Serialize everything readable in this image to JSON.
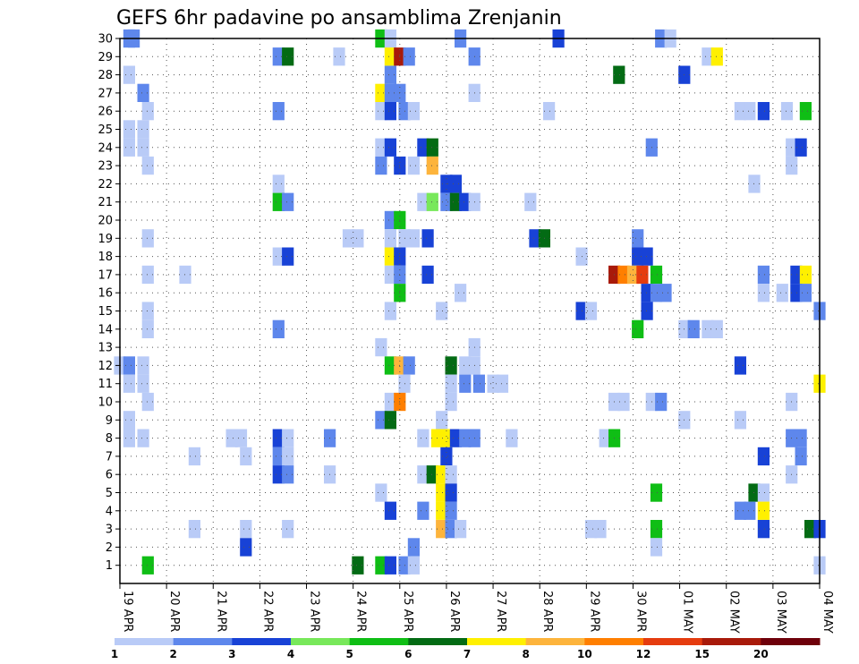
{
  "chart_data": {
    "type": "heatmap",
    "title": "GEFS 6hr padavine po ansamblima Zrenjanin",
    "xlabel": "",
    "ylabel": "",
    "x_tick_labels": [
      "19 APR",
      "20 APR",
      "21 APR",
      "22 APR",
      "23 APR",
      "24 APR",
      "25 APR",
      "26 APR",
      "27 APR",
      "28 APR",
      "29 APR",
      "30 APR",
      "01 MAY",
      "02 MAY",
      "03 MAY",
      "04 MAY"
    ],
    "xlim": [
      0,
      15
    ],
    "y_tick_labels": [
      "1",
      "2",
      "3",
      "4",
      "5",
      "6",
      "7",
      "8",
      "9",
      "10",
      "11",
      "12",
      "13",
      "14",
      "15",
      "16",
      "17",
      "18",
      "19",
      "20",
      "21",
      "22",
      "23",
      "24",
      "25",
      "26",
      "27",
      "28",
      "29",
      "30"
    ],
    "ylim": [
      0,
      30
    ],
    "grid": true,
    "legend": {
      "placement": "bottom",
      "levels": [
        "1",
        "2",
        "3",
        "4",
        "5",
        "6",
        "7",
        "8",
        "10",
        "12",
        "15",
        "20"
      ],
      "colors": [
        "#b9cbf7",
        "#5e87ec",
        "#1842d6",
        "#78e85a",
        "#0fbe15",
        "#036b14",
        "#fff000",
        "#fdb43c",
        "#ff7f00",
        "#e53c0f",
        "#a81a0a",
        "#6e000a"
      ]
    },
    "cells": [
      [
        0.2,
        30,
        2
      ],
      [
        0.3,
        30,
        2
      ],
      [
        5.6,
        30,
        5
      ],
      [
        5.8,
        30,
        1
      ],
      [
        7.3,
        30,
        2
      ],
      [
        9.4,
        30,
        3
      ],
      [
        11.6,
        30,
        2
      ],
      [
        11.8,
        30,
        1
      ],
      [
        3.4,
        29,
        2
      ],
      [
        3.6,
        29,
        6
      ],
      [
        4.7,
        29,
        1
      ],
      [
        5.8,
        29,
        7
      ],
      [
        6.0,
        29,
        15
      ],
      [
        6.2,
        29,
        2
      ],
      [
        7.6,
        29,
        2
      ],
      [
        12.6,
        29,
        1
      ],
      [
        12.8,
        29,
        7
      ],
      [
        0.2,
        28,
        1
      ],
      [
        5.8,
        28,
        2
      ],
      [
        10.7,
        28,
        6
      ],
      [
        12.1,
        28,
        3
      ],
      [
        0.5,
        27,
        2
      ],
      [
        5.6,
        27,
        7
      ],
      [
        5.8,
        27,
        2
      ],
      [
        6.0,
        27,
        2
      ],
      [
        7.6,
        27,
        1
      ],
      [
        0.6,
        26,
        1
      ],
      [
        3.4,
        26,
        2
      ],
      [
        5.6,
        26,
        1
      ],
      [
        5.8,
        26,
        3
      ],
      [
        6.1,
        26,
        2
      ],
      [
        6.3,
        26,
        1
      ],
      [
        9.2,
        26,
        1
      ],
      [
        13.3,
        26,
        1
      ],
      [
        13.5,
        26,
        1
      ],
      [
        13.8,
        26,
        3
      ],
      [
        14.3,
        26,
        1
      ],
      [
        14.7,
        26,
        5
      ],
      [
        0.2,
        25,
        1
      ],
      [
        0.5,
        25,
        1
      ],
      [
        0.2,
        24,
        1
      ],
      [
        0.5,
        24,
        1
      ],
      [
        5.6,
        24,
        1
      ],
      [
        5.8,
        24,
        3
      ],
      [
        6.5,
        24,
        3
      ],
      [
        6.7,
        24,
        6
      ],
      [
        11.4,
        24,
        2
      ],
      [
        14.4,
        24,
        1
      ],
      [
        14.6,
        24,
        3
      ],
      [
        0.6,
        23,
        1
      ],
      [
        5.6,
        23,
        2
      ],
      [
        6.0,
        23,
        3
      ],
      [
        6.3,
        23,
        1
      ],
      [
        6.7,
        23,
        9
      ],
      [
        14.4,
        23,
        1
      ],
      [
        3.4,
        22,
        1
      ],
      [
        7.0,
        22,
        3
      ],
      [
        7.2,
        22,
        3
      ],
      [
        13.6,
        22,
        1
      ],
      [
        3.4,
        21,
        5
      ],
      [
        3.6,
        21,
        2
      ],
      [
        6.5,
        21,
        1
      ],
      [
        6.7,
        21,
        4
      ],
      [
        7.0,
        21,
        2
      ],
      [
        7.2,
        21,
        6
      ],
      [
        7.4,
        21,
        3
      ],
      [
        7.6,
        21,
        1
      ],
      [
        8.8,
        21,
        1
      ],
      [
        5.8,
        20,
        2
      ],
      [
        6.0,
        20,
        5
      ],
      [
        0.6,
        19,
        1
      ],
      [
        4.9,
        19,
        1
      ],
      [
        5.1,
        19,
        1
      ],
      [
        5.8,
        19,
        1
      ],
      [
        6.1,
        19,
        1
      ],
      [
        6.3,
        19,
        1
      ],
      [
        6.6,
        19,
        3
      ],
      [
        8.9,
        19,
        3
      ],
      [
        9.1,
        19,
        6
      ],
      [
        11.1,
        19,
        2
      ],
      [
        3.4,
        18,
        1
      ],
      [
        3.6,
        18,
        3
      ],
      [
        5.8,
        18,
        7
      ],
      [
        6.0,
        18,
        3
      ],
      [
        9.9,
        18,
        1
      ],
      [
        11.1,
        18,
        3
      ],
      [
        11.3,
        18,
        3
      ],
      [
        0.6,
        17,
        1
      ],
      [
        1.4,
        17,
        1
      ],
      [
        5.8,
        17,
        1
      ],
      [
        6.0,
        17,
        2
      ],
      [
        6.6,
        17,
        3
      ],
      [
        10.6,
        17,
        16
      ],
      [
        10.8,
        17,
        11
      ],
      [
        11.0,
        17,
        9
      ],
      [
        11.2,
        17,
        13
      ],
      [
        11.5,
        17,
        5
      ],
      [
        13.8,
        17,
        2
      ],
      [
        14.5,
        17,
        3
      ],
      [
        14.7,
        17,
        7
      ],
      [
        6.0,
        16,
        5
      ],
      [
        7.3,
        16,
        1
      ],
      [
        11.3,
        16,
        3
      ],
      [
        11.5,
        16,
        2
      ],
      [
        11.7,
        16,
        2
      ],
      [
        13.8,
        16,
        1
      ],
      [
        14.2,
        16,
        1
      ],
      [
        14.5,
        16,
        3
      ],
      [
        14.7,
        16,
        2
      ],
      [
        0.6,
        15,
        1
      ],
      [
        5.8,
        15,
        1
      ],
      [
        6.9,
        15,
        1
      ],
      [
        9.9,
        15,
        3
      ],
      [
        10.1,
        15,
        1
      ],
      [
        11.3,
        15,
        3
      ],
      [
        15.0,
        15,
        2
      ],
      [
        0.6,
        14,
        1
      ],
      [
        3.4,
        14,
        2
      ],
      [
        11.1,
        14,
        5
      ],
      [
        12.1,
        14,
        1
      ],
      [
        12.3,
        14,
        2
      ],
      [
        12.6,
        14,
        1
      ],
      [
        12.8,
        14,
        1
      ],
      [
        5.6,
        13,
        1
      ],
      [
        7.6,
        13,
        1
      ],
      [
        0.0,
        12,
        1
      ],
      [
        0.2,
        12,
        2
      ],
      [
        0.5,
        12,
        1
      ],
      [
        5.8,
        12,
        5
      ],
      [
        6.0,
        12,
        9
      ],
      [
        6.2,
        12,
        2
      ],
      [
        7.1,
        12,
        6
      ],
      [
        7.4,
        12,
        1
      ],
      [
        7.6,
        12,
        1
      ],
      [
        13.3,
        12,
        3
      ],
      [
        0.2,
        11,
        1
      ],
      [
        0.5,
        11,
        1
      ],
      [
        6.1,
        11,
        1
      ],
      [
        7.1,
        11,
        1
      ],
      [
        7.4,
        11,
        2
      ],
      [
        7.7,
        11,
        2
      ],
      [
        8.0,
        11,
        1
      ],
      [
        8.2,
        11,
        1
      ],
      [
        15.0,
        11,
        7
      ],
      [
        0.6,
        10,
        1
      ],
      [
        5.8,
        10,
        1
      ],
      [
        6.0,
        10,
        11
      ],
      [
        7.1,
        10,
        1
      ],
      [
        10.6,
        10,
        1
      ],
      [
        10.8,
        10,
        1
      ],
      [
        11.4,
        10,
        1
      ],
      [
        11.6,
        10,
        2
      ],
      [
        14.4,
        10,
        1
      ],
      [
        0.2,
        9,
        1
      ],
      [
        5.6,
        9,
        2
      ],
      [
        5.8,
        9,
        6
      ],
      [
        6.9,
        9,
        1
      ],
      [
        12.1,
        9,
        1
      ],
      [
        13.3,
        9,
        1
      ],
      [
        0.2,
        8,
        1
      ],
      [
        0.5,
        8,
        1
      ],
      [
        2.4,
        8,
        1
      ],
      [
        2.6,
        8,
        1
      ],
      [
        3.4,
        8,
        3
      ],
      [
        3.6,
        8,
        1
      ],
      [
        4.5,
        8,
        2
      ],
      [
        6.5,
        8,
        1
      ],
      [
        6.8,
        8,
        7
      ],
      [
        7.0,
        8,
        7
      ],
      [
        7.2,
        8,
        3
      ],
      [
        7.4,
        8,
        2
      ],
      [
        7.6,
        8,
        2
      ],
      [
        8.4,
        8,
        1
      ],
      [
        10.4,
        8,
        1
      ],
      [
        10.6,
        8,
        5
      ],
      [
        14.4,
        8,
        2
      ],
      [
        14.6,
        8,
        2
      ],
      [
        1.6,
        7,
        1
      ],
      [
        2.7,
        7,
        1
      ],
      [
        3.4,
        7,
        2
      ],
      [
        3.6,
        7,
        1
      ],
      [
        7.0,
        7,
        3
      ],
      [
        13.8,
        7,
        3
      ],
      [
        14.6,
        7,
        2
      ],
      [
        3.4,
        6,
        3
      ],
      [
        3.6,
        6,
        2
      ],
      [
        4.5,
        6,
        1
      ],
      [
        6.5,
        6,
        1
      ],
      [
        6.7,
        6,
        6
      ],
      [
        6.9,
        6,
        7
      ],
      [
        7.1,
        6,
        1
      ],
      [
        14.4,
        6,
        1
      ],
      [
        5.6,
        5,
        1
      ],
      [
        6.9,
        5,
        7
      ],
      [
        7.1,
        5,
        3
      ],
      [
        11.5,
        5,
        5
      ],
      [
        13.6,
        5,
        6
      ],
      [
        13.8,
        5,
        1
      ],
      [
        5.8,
        4,
        3
      ],
      [
        6.5,
        4,
        2
      ],
      [
        6.9,
        4,
        7
      ],
      [
        7.1,
        4,
        2
      ],
      [
        13.3,
        4,
        2
      ],
      [
        13.5,
        4,
        2
      ],
      [
        13.8,
        4,
        7
      ],
      [
        1.6,
        3,
        1
      ],
      [
        2.7,
        3,
        1
      ],
      [
        3.6,
        3,
        1
      ],
      [
        6.9,
        3,
        9
      ],
      [
        7.1,
        3,
        2
      ],
      [
        7.3,
        3,
        1
      ],
      [
        10.1,
        3,
        1
      ],
      [
        10.3,
        3,
        1
      ],
      [
        11.5,
        3,
        5
      ],
      [
        13.8,
        3,
        3
      ],
      [
        14.8,
        3,
        6
      ],
      [
        15.0,
        3,
        3
      ],
      [
        2.7,
        2,
        3
      ],
      [
        6.3,
        2,
        2
      ],
      [
        11.5,
        2,
        1
      ],
      [
        0.6,
        1,
        5
      ],
      [
        5.1,
        1,
        6
      ],
      [
        5.6,
        1,
        5
      ],
      [
        5.8,
        1,
        3
      ],
      [
        6.1,
        1,
        2
      ],
      [
        6.3,
        1,
        1
      ],
      [
        15.0,
        1,
        1
      ]
    ]
  }
}
